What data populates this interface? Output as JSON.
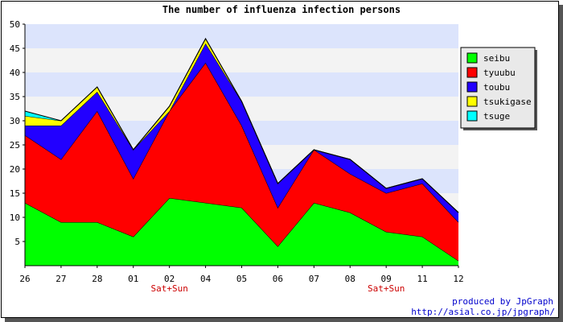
{
  "chart_data": {
    "type": "area",
    "stacked": true,
    "title": "The number of influenza infection persons",
    "categories": [
      "26",
      "27",
      "28",
      "01",
      "02",
      "04",
      "05",
      "06",
      "07",
      "08",
      "09",
      "11",
      "12"
    ],
    "category_notes": [
      {
        "category": "02",
        "text": "Sat+Sun"
      },
      {
        "category": "09",
        "text": "Sat+Sun"
      }
    ],
    "ylim": [
      0,
      50
    ],
    "yticks": [
      5,
      10,
      15,
      20,
      25,
      30,
      35,
      40,
      45,
      50
    ],
    "grid": "horizontal bands",
    "legend_position": "right",
    "series": [
      {
        "name": "seibu",
        "color": "#00ff00",
        "values": [
          13,
          9,
          9,
          6,
          14,
          13,
          12,
          4,
          13,
          11,
          7,
          6,
          1
        ]
      },
      {
        "name": "tyuubu",
        "color": "#ff0000",
        "values": [
          14,
          13,
          23,
          12,
          18,
          29,
          17,
          8,
          11,
          8,
          8,
          11,
          8
        ]
      },
      {
        "name": "toubu",
        "color": "#2200ff",
        "values": [
          2,
          7,
          4,
          6,
          0,
          4,
          5,
          5,
          0,
          3,
          1,
          1,
          2
        ]
      },
      {
        "name": "tsukigase",
        "color": "#ffff00",
        "values": [
          2,
          1,
          1,
          0,
          1,
          1,
          0,
          0,
          0,
          0,
          0,
          0,
          0
        ]
      },
      {
        "name": "tsuge",
        "color": "#00ffff",
        "values": [
          1,
          0,
          0,
          0,
          0,
          0,
          0,
          0,
          0,
          0,
          0,
          0,
          0
        ]
      }
    ]
  },
  "credit": {
    "line1": "produced by JpGraph",
    "line2": "http://asial.co.jp/jpgraph/"
  }
}
